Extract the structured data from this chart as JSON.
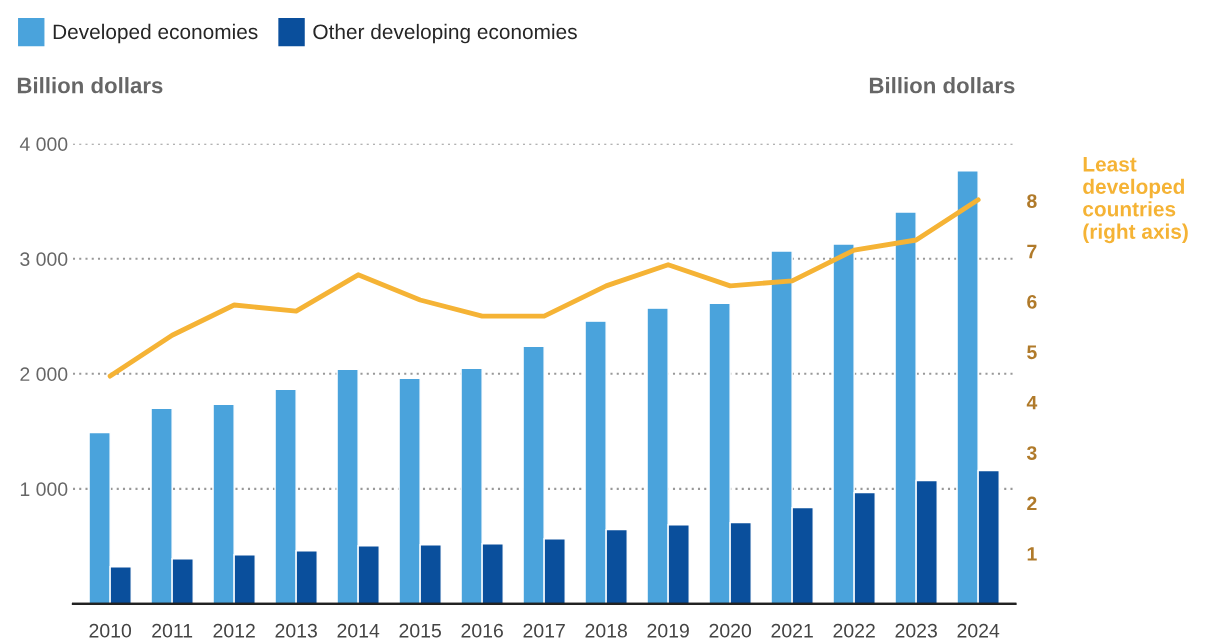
{
  "chart_data": {
    "type": "bar",
    "categories": [
      "2010",
      "2011",
      "2012",
      "2013",
      "2014",
      "2015",
      "2016",
      "2017",
      "2018",
      "2019",
      "2020",
      "2021",
      "2022",
      "2023",
      "2024"
    ],
    "ylabel": "Billion dollars",
    "y2label": "Billion dollars",
    "series": [
      {
        "name": "Developed economies",
        "color": "#4aa3dc",
        "values": [
          1490,
          1700,
          1734,
          1865,
          2039,
          1961,
          2048,
          2240,
          2458,
          2571,
          2614,
          3068,
          3129,
          3407,
          3765
        ]
      },
      {
        "name": "Other developing economies",
        "color": "#0a4f9c",
        "values": [
          322,
          392,
          427,
          462,
          505,
          514,
          523,
          566,
          645,
          688,
          706,
          837,
          967,
          1072,
          1159
        ]
      },
      {
        "name": "Least developed countries (right axis)",
        "type": "line",
        "axis": "y2",
        "color": "#f5b335",
        "values": [
          4.52,
          5.33,
          5.93,
          5.81,
          6.53,
          6.03,
          5.71,
          5.71,
          6.31,
          6.73,
          6.31,
          6.41,
          7.02,
          7.22,
          8.02
        ]
      }
    ],
    "ylim": [
      0,
      4000
    ],
    "yticks": [
      {
        "value": 1000,
        "label": "1 000"
      },
      {
        "value": 2000,
        "label": "2 000"
      },
      {
        "value": 3000,
        "label": "3 000"
      },
      {
        "value": 4000,
        "label": "4 000"
      }
    ],
    "y2lim": [
      0,
      9.13
    ],
    "y2ticks": [
      1,
      2,
      3,
      4,
      5,
      6,
      7,
      8
    ],
    "grid": "y",
    "legend": "top left"
  }
}
